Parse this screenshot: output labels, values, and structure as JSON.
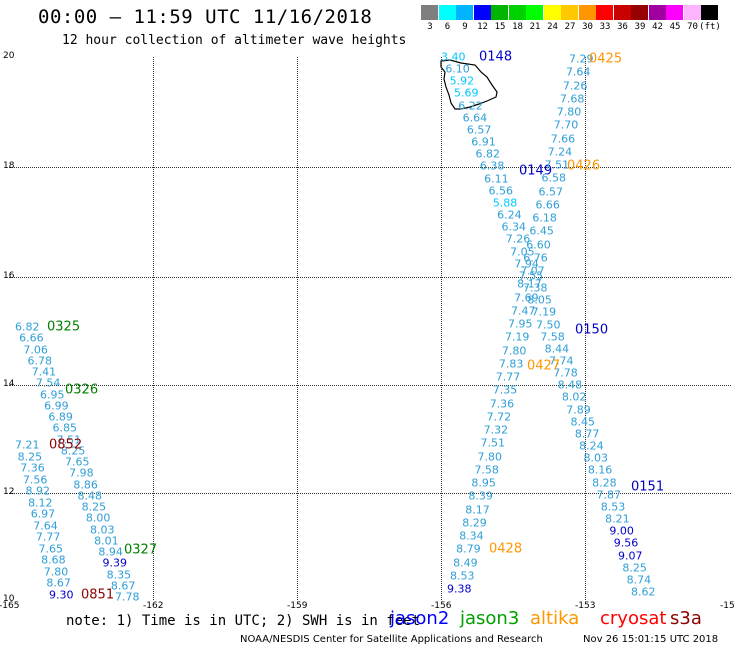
{
  "title": "00:00 – 11:59 UTC 11/16/2018",
  "subtitle": "12 hour collection of altimeter wave heights",
  "colorbar": {
    "colors": [
      "#7f7f7f",
      "#00ffff",
      "#00b4ff",
      "#0000ff",
      "#00b400",
      "#00d200",
      "#00ff00",
      "#ffff00",
      "#ffc800",
      "#ff9600",
      "#ff0000",
      "#c80000",
      "#960000",
      "#a000a0",
      "#ff00ff",
      "#ffb4ff",
      "#000000"
    ],
    "labels": [
      "3",
      "6",
      "9",
      "12",
      "15",
      "18",
      "21",
      "24",
      "27",
      "30",
      "33",
      "36",
      "39",
      "42",
      "45",
      "70",
      "(ft)"
    ]
  },
  "axes": {
    "x_ticks": [
      "-165",
      "-162",
      "-159",
      "-156",
      "-153",
      "-15"
    ],
    "y_ticks": [
      "20",
      "18",
      "16",
      "14",
      "12",
      "10"
    ]
  },
  "legend": {
    "note": "note: 1) Time is in UTC; 2) SWH is in feet",
    "sats": [
      {
        "name": "jason2",
        "color": "#0000ff"
      },
      {
        "name": "jason3",
        "color": "#00a000"
      },
      {
        "name": "altika",
        "color": "#ff9600"
      },
      {
        "name": "cryosat",
        "color": "#ff0000"
      },
      {
        "name": "s3a",
        "color": "#8b0000"
      }
    ]
  },
  "footer": "NOAA/NESDIS Center for Satellite Applications and Research",
  "footer_time": "Nov 26 15:01:15 UTC 2018",
  "tracks": [
    {
      "id": "t_0325",
      "times": [
        "0325",
        "0326",
        "0327"
      ],
      "time_color": "#008000",
      "values": [
        "6.82",
        "6.66",
        "7.06",
        "6.78",
        "7.41",
        "7.54",
        "6.95",
        "6.99",
        "6.89",
        "6.85",
        "7.51",
        "8.25",
        "7.65",
        "7.98",
        "8.86",
        "8.48",
        "8.25",
        "8.00",
        "8.03",
        "8.01",
        "8.94",
        "9.39",
        "8.35",
        "8.67",
        "7.78"
      ]
    },
    {
      "id": "t_0852",
      "times": [
        "0852",
        "0851"
      ],
      "time_color": "#8b0000",
      "values": [
        "7.21",
        "8.25",
        "7.36",
        "7.56",
        "8.92",
        "8.12",
        "6.97",
        "7.64",
        "7.77",
        "7.65",
        "8.68",
        "7.80",
        "8.67",
        "9.30"
      ]
    },
    {
      "id": "t_0148",
      "times": [
        "0148",
        "0149",
        "0150",
        "0151"
      ],
      "time_color": "#0000c8",
      "values": [
        "3.40",
        "6.10",
        "5.92",
        "5.69",
        "6.22",
        "6.64",
        "6.57",
        "6.91",
        "6.82",
        "6.38",
        "6.11",
        "6.56",
        "5.88",
        "6.24",
        "6.34",
        "7.26",
        "7.05",
        "7.94",
        "7.55",
        "7.38",
        "8.05",
        "7.19",
        "7.50",
        "7.58",
        "8.44",
        "7.74",
        "7.78",
        "8.48",
        "8.02",
        "7.89",
        "8.45",
        "8.77",
        "8.24",
        "8.03",
        "8.16",
        "8.28",
        "7.87",
        "8.53",
        "8.21",
        "9.00",
        "9.56",
        "9.07",
        "8.25",
        "8.74",
        "8.62"
      ]
    },
    {
      "id": "t_0425",
      "times": [
        "0425",
        "0426",
        "0427",
        "0428"
      ],
      "time_color": "#ff9600",
      "values": [
        "7.29",
        "7.64",
        "7.26",
        "7.68",
        "7.80",
        "7.70",
        "7.66",
        "7.24",
        "7.51",
        "6.58",
        "6.57",
        "6.66",
        "6.18",
        "6.45",
        "6.60",
        "6.76",
        "7.07",
        "8.17",
        "7.69",
        "7.47",
        "7.95",
        "7.19",
        "7.80",
        "7.83",
        "7.77",
        "7.35",
        "7.36",
        "7.72",
        "7.32",
        "7.51",
        "7.80",
        "7.58",
        "8.95",
        "8.39",
        "8.17",
        "8.29",
        "8.34",
        "8.79",
        "8.49",
        "8.53",
        "9.38"
      ]
    }
  ]
}
